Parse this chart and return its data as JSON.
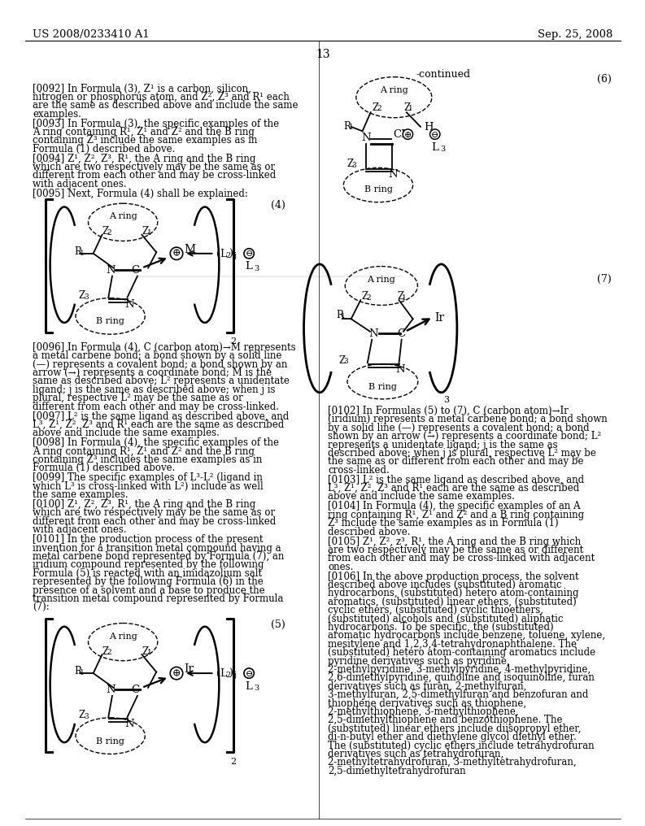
{
  "page_header_left": "US 2008/0233410 A1",
  "page_header_right": "Sep. 25, 2008",
  "page_number": "13",
  "bg_color": "#ffffff",
  "formula4_label": "(4)",
  "formula5_label": "(5)",
  "formula6_label": "(6)",
  "formula7_label": "(7)",
  "continued_label": "-continued",
  "left_paras": [
    "[0092]    In Formula (3), Z¹ is a carbon, silicon, nitrogen or phosphorus atom, and Z², Z³ and R¹ each are the same as described above and include the same examples.",
    "[0093]    In Formula (3), the specific examples of the A ring containing R¹, Z¹ and Z² and the B ring containing Z³ include the same examples as in Formula (1) described above.",
    "[0094]    Z¹, Z², Z³, R¹, the A ring and the B ring which are two respectively may be the same as or different from each other and may be cross-linked with adjacent ones.",
    "[0095]    Next, Formula (4) shall be explained:",
    "[0096]    In Formula (4), C (carbon atom)→M represents a metal carbene bond; a bond shown by a solid line (—) represents a covalent bond; a bond shown by an arrow (→) represents a coordinate bond; M is the same as described above; L² represents a unidentate ligand; j is the same as described above; when j is plural, respective L² may be the same as or different from each other and may be cross-linked.",
    "[0097]    L² is the same ligand as described above, and L³, Z¹, Z², Z³ and R¹ each are the same as described above and include the same examples.",
    "[0098]    In Formula (4), the specific examples of the A ring containing R¹, Z¹ and Z² and the B ring containing Z³ includes the same examples as in Formula (1) described above.",
    "[0099]    The specific examples of L³-L² (ligand in which L³ is cross-linked with L²) include as well the same examples.",
    "[0100]    Z¹, Z², Z³, R¹, the A ring and the B ring which are two respectively may be the same as or different from each other and may be cross-linked with adjacent ones.",
    "[0101]    In the production process of the present invention for a transition metal compound having a metal carbene bond represented by Formula (7), an iridium compound represented by the following Formula (5) is reacted with an imidazolium salt represented by the following Formula (6) in the presence of a solvent and a base to produce the transition metal compound represented by Formula (7):"
  ],
  "right_paras": [
    "[0102]    In Formulas (5) to (7), C (carbon atom)→Ir (iridium) represents a metal carbene bond; a bond shown by a solid line (—) represents a covalent bond; a bond shown by an arrow (→) represents a coordinate bond; L² represents a unidentate ligand; j is the same as described above; when j is plural, respective L² may be the same as or different from each other and may be cross-linked.",
    "[0103]    L² is the same ligand as described above, and L³, Z¹, Z², Z³ and R¹ each are the same as described above and include the same examples.",
    "[0104]    In Formula (4), the specific examples of an A ring containing R¹, Z¹ and Z² and a B ring containing Z³ include the same examples as in Formula (1) described above.",
    "[0105]    Z¹, Z², z³, R¹, the A ring and the B ring which are two respectively may be the same as or different from each other and may be cross-linked with adjacent ones.",
    "[0106]    In the above production process, the solvent described above includes (substituted) aromatic hydrocarbons, (substituted) hetero atom-containing aromatics, (substituted) linear ethers, (substituted) cyclic ethers, (substituted) cyclic thioethers, (substituted) alcohols and (substituted) aliphatic hydrocarbons. To be specific, the (substituted) aromatic hydrocarbons include benzene, toluene, xylene, mesitylene and 1,2,3,4-tetrahydronaphthalene. The (substituted) hetero atom-containing aromatics include pyridine derivatives such as pyridine, 2-methylpyridine, 3-methylpyridine, 4-methylpyridine, 2,6-dimethylpyridine, quinoline and isoquinoline, furan derivatives such as furan, 2-methylfuran, 3-methylfuran, 2,5-dimethylfuran and benzofuran and thiophene derivatives such as thiophene, 2-methylthiophene, 3-methylthiophene, 2,5-dimethylthiophene and benzothiophene. The (substituted) linear ethers include diisopropyl ether, di-n-butyl ether and diethylene glycol diethyl ether. The (substituted) cyclic ethers include tetrahydrofuran derivatives such as tetrahydrofuran, 2-methyltetrahydrofuran, 3-methyltetrahydrofuran, 2,5-dimethyltetrahydrofuran"
  ]
}
